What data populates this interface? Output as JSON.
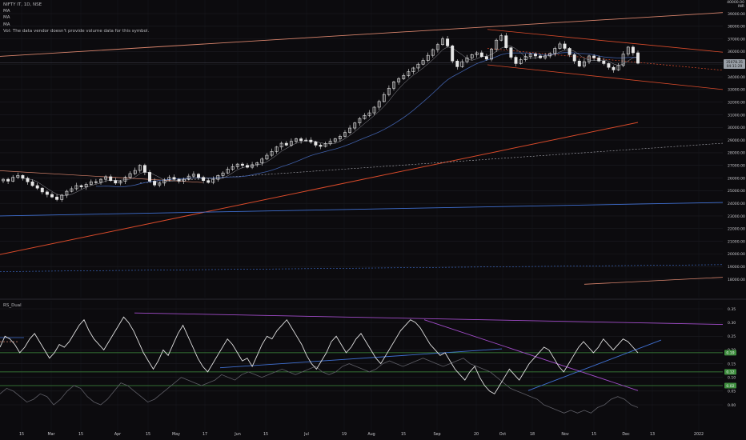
{
  "header": {
    "symbol_line": "NIFTY IT, 1D, NSE",
    "ma_lines": [
      "MA",
      "MA",
      "MA"
    ],
    "vol_line": "Vol: The data vendor doesn't provide volume data for this symbol."
  },
  "corner_label": {
    "line1": "40000.00",
    "line2": "INR"
  },
  "rsi_panel": {
    "title": "RS_Dual"
  },
  "colors": {
    "background": "#0c0b0e",
    "grid": "#1c1c22",
    "candle": "#e6e6e6",
    "trend_orange": "#d84a2a",
    "channel_salmon": "#d8846c",
    "ma_blue": "#3f6fd0",
    "purple": "#a14cc9",
    "rsi_line": "#e0e0e0",
    "green_level": "#3f8f3f"
  },
  "chart_data": [
    {
      "type": "candlestick",
      "title": "NIFTY IT, 1D, NSE",
      "xlabel": "",
      "ylabel": "",
      "ylim": [
        17500,
        40000
      ],
      "x_tick_labels": [
        "15",
        "Mar",
        "15",
        "Apr",
        "15",
        "May",
        "17",
        "Jun",
        "15",
        "Jul",
        "19",
        "Aug",
        "15",
        "Sep",
        "20",
        "Oct",
        "18",
        "Nov",
        "15",
        "Dec",
        "13",
        "2022"
      ],
      "y_tick_labels": [
        "18000.00",
        "19000.00",
        "20000.00",
        "21000.00",
        "22000.00",
        "23000.00",
        "24000.00",
        "25000.00",
        "26000.00",
        "27000.00",
        "28000.00",
        "29000.00",
        "30000.00",
        "31000.00",
        "32000.00",
        "33000.00",
        "34000.00",
        "35000.00",
        "36000.00",
        "37000.00",
        "38000.00",
        "39000.00"
      ],
      "last_price_labels": [
        "35078.35",
        "04:11:29"
      ],
      "grid": true,
      "close_series": [
        25900,
        25750,
        26050,
        26200,
        25980,
        25700,
        25400,
        25200,
        24900,
        24700,
        24500,
        24300,
        24650,
        24950,
        25150,
        25400,
        25300,
        25500,
        25700,
        25650,
        25900,
        26100,
        25800,
        25600,
        25750,
        26050,
        26350,
        26600,
        27000,
        26450,
        25750,
        25450,
        25600,
        25850,
        26050,
        25900,
        25750,
        25900,
        26150,
        26300,
        26050,
        25800,
        25650,
        25900,
        26200,
        26400,
        26700,
        26900,
        27100,
        27000,
        26850,
        27050,
        27200,
        27500,
        27800,
        28100,
        28450,
        28750,
        28600,
        28900,
        29100,
        28950,
        29000,
        28850,
        28600,
        28500,
        28700,
        28900,
        29100,
        29300,
        29600,
        29950,
        30350,
        30700,
        30950,
        31150,
        31600,
        32050,
        32600,
        33100,
        33600,
        33850,
        34100,
        34400,
        34700,
        35000,
        35300,
        35700,
        36150,
        36550,
        37000,
        36450,
        35250,
        34800,
        35200,
        35500,
        35750,
        35900,
        35600,
        35400,
        36200,
        36900,
        37250,
        36300,
        35550,
        35050,
        35350,
        35600,
        35800,
        35650,
        35500,
        35650,
        35850,
        36250,
        36600,
        36250,
        35750,
        35250,
        34850,
        35200,
        35650,
        35500,
        35250,
        35050,
        34750,
        34550,
        34900,
        35800,
        36350,
        35900,
        35078
      ]
    },
    {
      "type": "line",
      "title": "RS_Dual",
      "xlabel": "",
      "ylabel": "",
      "ylim": [
        -0.03,
        0.37
      ],
      "y_tick_labels": [
        "0.35",
        "0.30",
        "0.25",
        "0.20",
        "0.15",
        "0.10",
        "0.05",
        "0.00"
      ],
      "level_labels": [
        "0.19",
        "0.12",
        "0.02"
      ],
      "grid": true,
      "series": [
        {
          "values": [
            0.21,
            0.25,
            0.24,
            0.22,
            0.19,
            0.21,
            0.24,
            0.26,
            0.23,
            0.2,
            0.17,
            0.19,
            0.22,
            0.21,
            0.23,
            0.26,
            0.29,
            0.31,
            0.27,
            0.24,
            0.22,
            0.2,
            0.23,
            0.26,
            0.29,
            0.32,
            0.3,
            0.27,
            0.23,
            0.19,
            0.16,
            0.13,
            0.16,
            0.2,
            0.18,
            0.22,
            0.26,
            0.29,
            0.25,
            0.21,
            0.17,
            0.14,
            0.12,
            0.15,
            0.18,
            0.21,
            0.24,
            0.22,
            0.19,
            0.16,
            0.17,
            0.14,
            0.18,
            0.22,
            0.25,
            0.24,
            0.27,
            0.29,
            0.31,
            0.28,
            0.25,
            0.22,
            0.18,
            0.15,
            0.13,
            0.16,
            0.19,
            0.23,
            0.25,
            0.22,
            0.19,
            0.21,
            0.24,
            0.26,
            0.23,
            0.2,
            0.17,
            0.15,
            0.18,
            0.21,
            0.24,
            0.27,
            0.29,
            0.31,
            0.3,
            0.28,
            0.25,
            0.22,
            0.2,
            0.18,
            0.19,
            0.16,
            0.13,
            0.11,
            0.09,
            0.12,
            0.14,
            0.1,
            0.07,
            0.05,
            0.04,
            0.07,
            0.1,
            0.13,
            0.11,
            0.09,
            0.12,
            0.15,
            0.17,
            0.19,
            0.21,
            0.2,
            0.17,
            0.14,
            0.12,
            0.15,
            0.18,
            0.21,
            0.23,
            0.21,
            0.19,
            0.21,
            0.24,
            0.22,
            0.2,
            0.22,
            0.24,
            0.23,
            0.21,
            0.19
          ]
        },
        {
          "values": [
            0.04,
            0.06,
            0.05,
            0.03,
            0.01,
            0.02,
            0.04,
            0.03,
            0.0,
            0.02,
            0.05,
            0.07,
            0.06,
            0.03,
            0.01,
            0.0,
            0.02,
            0.05,
            0.08,
            0.07,
            0.05,
            0.03,
            0.01,
            0.02,
            0.04,
            0.06,
            0.08,
            0.1,
            0.09,
            0.08,
            0.07,
            0.08,
            0.09,
            0.11,
            0.1,
            0.09,
            0.11,
            0.12,
            0.11,
            0.1,
            0.11,
            0.12,
            0.13,
            0.12,
            0.11,
            0.12,
            0.13,
            0.14,
            0.12,
            0.11,
            0.12,
            0.14,
            0.15,
            0.14,
            0.13,
            0.12,
            0.13,
            0.15,
            0.16,
            0.15,
            0.14,
            0.15,
            0.16,
            0.17,
            0.16,
            0.15,
            0.14,
            0.15,
            0.16,
            0.17,
            0.15,
            0.14,
            0.13,
            0.12,
            0.1,
            0.08,
            0.06,
            0.05,
            0.04,
            0.03,
            0.02,
            0.0,
            -0.01,
            -0.02,
            -0.03,
            -0.02,
            -0.03,
            -0.02,
            -0.03,
            -0.01,
            0.0,
            0.02,
            0.03,
            0.02,
            0.0,
            -0.01
          ]
        }
      ]
    }
  ]
}
